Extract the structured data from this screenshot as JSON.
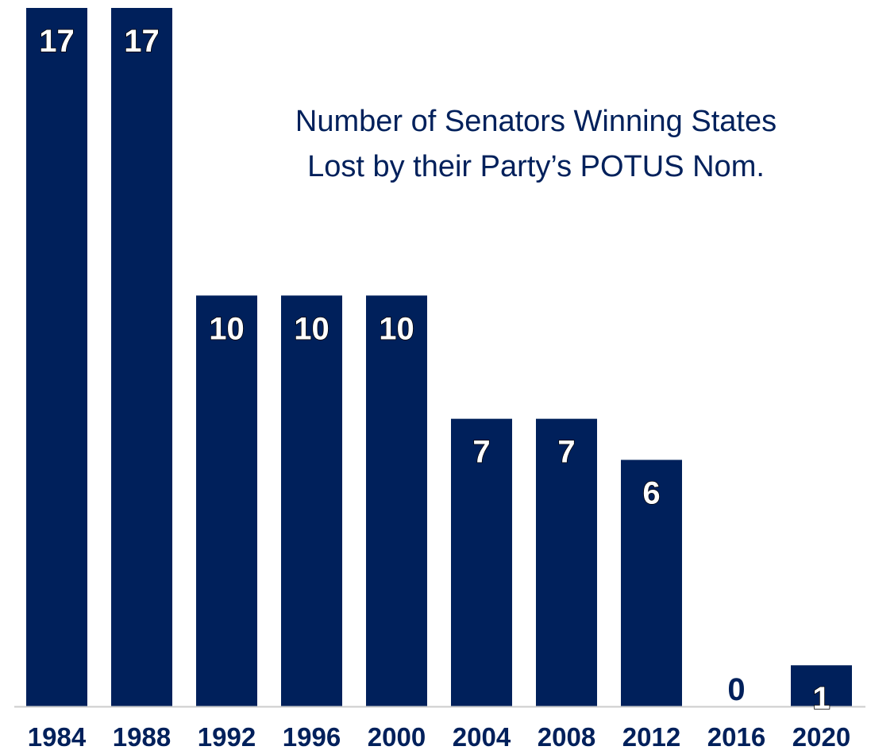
{
  "chart_data": {
    "type": "bar",
    "categories": [
      "1984",
      "1988",
      "1992",
      "1996",
      "2000",
      "2004",
      "2008",
      "2012",
      "2016",
      "2020"
    ],
    "values": [
      17,
      17,
      10,
      10,
      10,
      7,
      7,
      6,
      0,
      1
    ],
    "data_labels": [
      "17",
      "17",
      "10",
      "10",
      "10",
      "7",
      "7",
      "6",
      "0",
      "1"
    ],
    "title_lines": [
      "Number of Senators Winning States",
      "Lost by their Party’s POTUS Nom."
    ],
    "xlabel": "",
    "ylabel": "",
    "ylim": [
      0,
      17
    ],
    "grid": false,
    "legend": "none",
    "bar_color": "#00205b",
    "label_color_inside": "#ffffff",
    "label_color_outside": "#00205b",
    "title_color": "#00205b",
    "axis_color": "#cccccc"
  }
}
